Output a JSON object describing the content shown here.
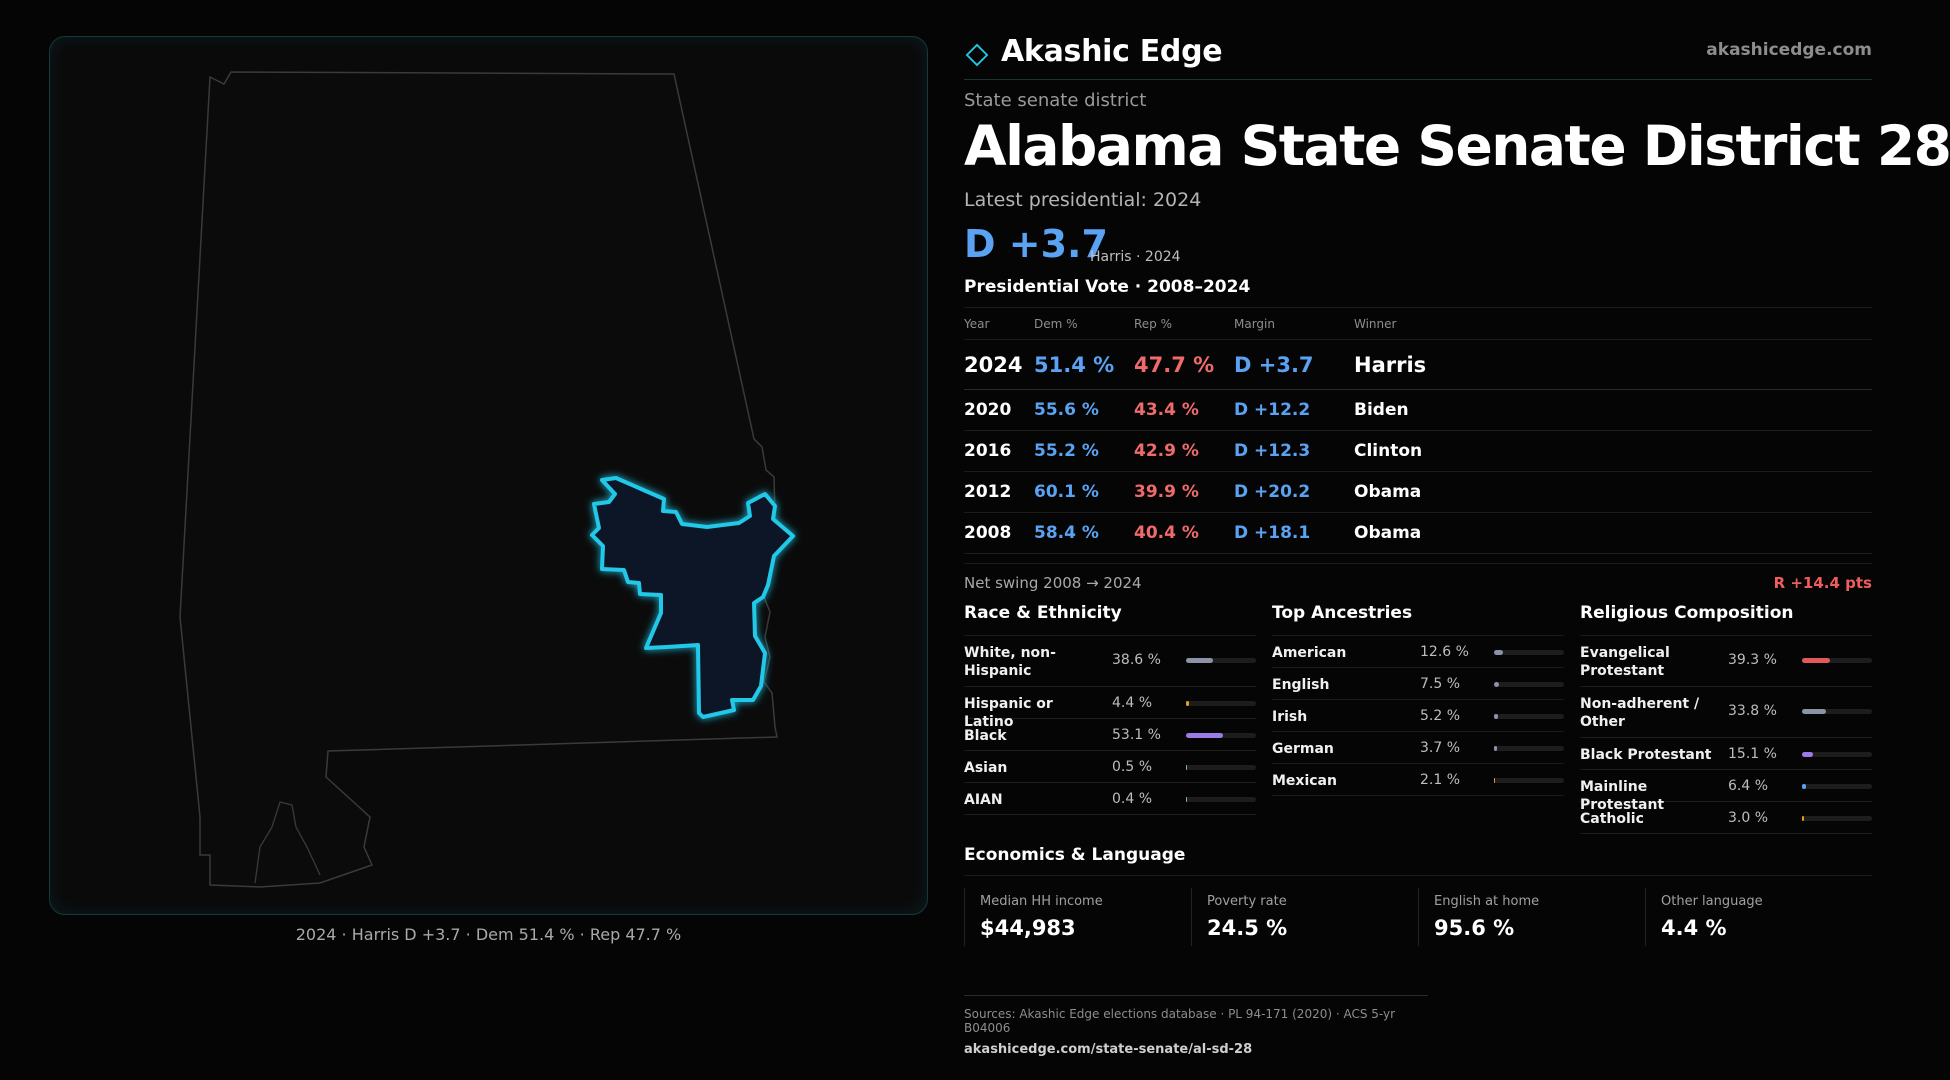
{
  "brand": {
    "name": "Akashic Edge",
    "url": "akashicedge.com"
  },
  "kicker": "State senate district",
  "title": "Alabama State Senate District 28",
  "latest_label": "Latest presidential: 2024",
  "headline_margin": "D +3.7",
  "headline_sub": "Harris · 2024",
  "vote_section": "Presidential Vote · 2008–2024",
  "vote_headers": {
    "year": "Year",
    "dem": "Dem %",
    "rep": "Rep %",
    "margin": "Margin",
    "winner": "Winner"
  },
  "votes": [
    {
      "year": "2024",
      "dem": "51.4 %",
      "rep": "47.7 %",
      "margin": "D +3.7",
      "winner": "Harris"
    },
    {
      "year": "2020",
      "dem": "55.6 %",
      "rep": "43.4 %",
      "margin": "D +12.2",
      "winner": "Biden"
    },
    {
      "year": "2016",
      "dem": "55.2 %",
      "rep": "42.9 %",
      "margin": "D +12.3",
      "winner": "Clinton"
    },
    {
      "year": "2012",
      "dem": "60.1 %",
      "rep": "39.9 %",
      "margin": "D +20.2",
      "winner": "Obama"
    },
    {
      "year": "2008",
      "dem": "58.4 %",
      "rep": "40.4 %",
      "margin": "D +18.1",
      "winner": "Obama"
    }
  ],
  "swing": {
    "label": "Net swing 2008 → 2024",
    "value": "R +14.4 pts"
  },
  "race": {
    "title": "Race & Ethnicity",
    "items": [
      {
        "name": "White, non-Hispanic",
        "pct": "38.6 %",
        "share": 0.386,
        "color": "#8a94a6"
      },
      {
        "name": "Hispanic or Latino",
        "pct": "4.4 %",
        "share": 0.044,
        "color": "#e0a020"
      },
      {
        "name": "Black",
        "pct": "53.1 %",
        "share": 0.531,
        "color": "#9a7ce8"
      },
      {
        "name": "Asian",
        "pct": "0.5 %",
        "share": 0.005,
        "color": "#6fb0d8"
      },
      {
        "name": "AIAN",
        "pct": "0.4 %",
        "share": 0.004,
        "color": "#6fb0d8"
      }
    ]
  },
  "ancestry": {
    "title": "Top Ancestries",
    "items": [
      {
        "name": "American",
        "pct": "12.6 %",
        "share": 0.126,
        "color": "#8a94a6"
      },
      {
        "name": "English",
        "pct": "7.5 %",
        "share": 0.075,
        "color": "#8a94a6"
      },
      {
        "name": "Irish",
        "pct": "5.2 %",
        "share": 0.052,
        "color": "#8a94a6"
      },
      {
        "name": "German",
        "pct": "3.7 %",
        "share": 0.037,
        "color": "#8a94a6"
      },
      {
        "name": "Mexican",
        "pct": "2.1 %",
        "share": 0.021,
        "color": "#e0a020"
      }
    ]
  },
  "religion": {
    "title": "Religious Composition",
    "items": [
      {
        "name": "Evangelical Protestant",
        "pct": "39.3 %",
        "share": 0.393,
        "color": "#e05a5a"
      },
      {
        "name": "Non-adherent / Other",
        "pct": "33.8 %",
        "share": 0.338,
        "color": "#8a94a6"
      },
      {
        "name": "Black Protestant",
        "pct": "15.1 %",
        "share": 0.151,
        "color": "#9a7ce8"
      },
      {
        "name": "Mainline Protestant",
        "pct": "6.4 %",
        "share": 0.064,
        "color": "#5aa2f2"
      },
      {
        "name": "Catholic",
        "pct": "3.0 %",
        "share": 0.03,
        "color": "#e0a020"
      }
    ]
  },
  "economics": {
    "title": "Economics & Language",
    "items": [
      {
        "label": "Median HH income",
        "value": "$44,983"
      },
      {
        "label": "Poverty rate",
        "value": "24.5 %"
      },
      {
        "label": "English at home",
        "value": "95.6 %"
      },
      {
        "label": "Other language",
        "value": "4.4 %"
      }
    ]
  },
  "map_caption": "2024 · Harris D +3.7 · Dem 51.4 % · Rep 47.7  %",
  "footer": {
    "sources": "Sources: Akashic Edge elections database · PL 94-171 (2020) · ACS 5-yr B04006",
    "url": "akashicedge.com/state-senate/al-sd-28"
  },
  "colors": {
    "accent": "#22c8e8",
    "dem": "#5aa2f2",
    "rep": "#ef6b6b"
  }
}
